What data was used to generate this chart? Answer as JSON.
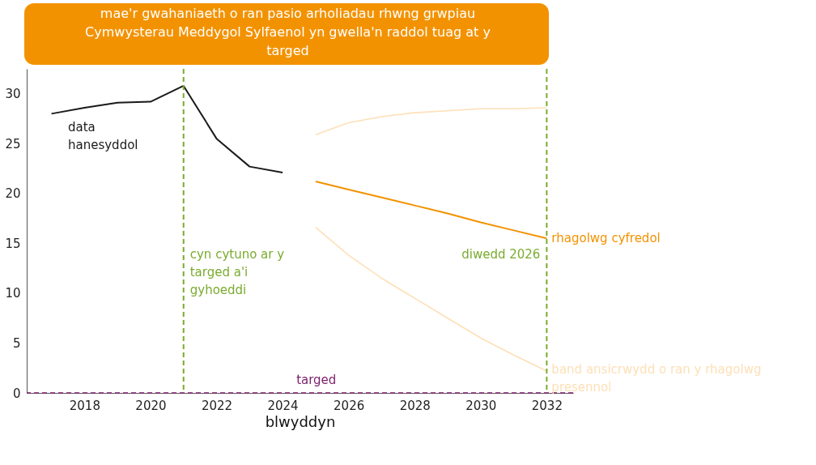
{
  "chart_data": {
    "type": "line",
    "title": "mae'r gwahaniaeth o ran pasio arholiadau rhwng grwpiau Cymwysterau Meddygol Sylfaenol yn gwella'n raddol tuag at y targed",
    "xlabel": "blwyddyn",
    "xlim": [
      2016.25,
      2032.8
    ],
    "xticks": [
      2018,
      2020,
      2022,
      2024,
      2026,
      2028,
      2030,
      2032
    ],
    "ylim": [
      0,
      32.5
    ],
    "yticks": [
      0,
      5,
      10,
      15,
      20,
      25,
      30
    ],
    "grid": false,
    "line_style": "solid",
    "marker": "none",
    "series": [
      {
        "name": "data hanesyddol",
        "color": "#1a1a1a",
        "x": [
          2017,
          2018,
          2019,
          2020,
          2021,
          2022,
          2023,
          2024
        ],
        "values": [
          28.0,
          28.6,
          29.1,
          29.2,
          30.8,
          25.5,
          22.7,
          22.1
        ]
      },
      {
        "name": "rhagolwg cyfredol",
        "color": "#f39200",
        "x": [
          2025,
          2026,
          2027,
          2028,
          2029,
          2030,
          2031,
          2032
        ],
        "values": [
          21.2,
          20.4,
          19.6,
          18.8,
          18.0,
          17.1,
          16.3,
          15.5
        ]
      },
      {
        "color": "#fde0b8",
        "x": [
          2025,
          2026,
          2027,
          2028,
          2029,
          2030,
          2031,
          2032
        ],
        "values": [
          25.9,
          27.1,
          27.7,
          28.1,
          28.3,
          28.5,
          28.5,
          28.6
        ]
      },
      {
        "color": "#fde0b8",
        "x": [
          2025,
          2026,
          2027,
          2028,
          2029,
          2030,
          2031,
          2032
        ],
        "values": [
          16.6,
          13.8,
          11.5,
          9.5,
          7.5,
          5.5,
          3.8,
          2.2
        ]
      }
    ],
    "ref_lines": [
      {
        "axis": "x",
        "value": 2021,
        "label": "cyn cytuno ar y targed a'i gyhoeddi",
        "color": "#7aab2f",
        "line_style": "dashed"
      },
      {
        "axis": "x",
        "value": 2032,
        "label": "diwedd 2026",
        "color": "#7aab2f",
        "line_style": "dashed"
      },
      {
        "axis": "y",
        "value": 0,
        "label": "targed",
        "color": "#7b1f6a",
        "line_style": "dashed"
      }
    ],
    "annotations": [
      {
        "text": "band ansicrwydd o ran y rhagolwg presennol",
        "x": 2032,
        "y": 2.2
      }
    ]
  }
}
